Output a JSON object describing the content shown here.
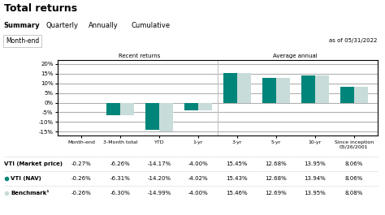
{
  "chart_data": {
    "type": "bar",
    "title": "Total returns",
    "annotations": [
      "Summary",
      "Quarterly",
      "Annually",
      "Cumulative",
      "Month-end",
      "as of 05/31/2022",
      "Recent returns",
      "Average annual"
    ],
    "categories": [
      "Month-end",
      "3-Month total",
      "YTD",
      "1-yr",
      "3-yr",
      "5-yr",
      "10-yr",
      "Since inception\n05/26/2001"
    ],
    "series": [
      {
        "name": "VTI (Market price)",
        "type": "table",
        "values": [
          -0.27,
          -6.26,
          -14.17,
          -4.0,
          15.45,
          12.68,
          13.95,
          8.06
        ],
        "value_labels": [
          "-0.27%",
          "-6.26%",
          "-14.17%",
          "-4.00%",
          "15.45%",
          "12.68%",
          "13.95%",
          "8.06%"
        ]
      },
      {
        "name": "VTI (NAV)",
        "type": "bar",
        "color": "#00857A",
        "values": [
          -0.26,
          -6.31,
          -14.2,
          -4.02,
          15.43,
          12.68,
          13.94,
          8.06
        ],
        "value_labels": [
          "-0.26%",
          "-6.31%",
          "-14.20%",
          "-4.02%",
          "15.43%",
          "12.68%",
          "13.94%",
          "8.06%"
        ]
      },
      {
        "name": "Benchmark¹",
        "type": "bar",
        "color": "#C8DDD9",
        "values": [
          -0.26,
          -6.3,
          -14.99,
          -4.0,
          15.46,
          12.69,
          13.95,
          8.08
        ],
        "value_labels": [
          "-0.26%",
          "-6.30%",
          "-14.99%",
          "-4.00%",
          "15.46%",
          "12.69%",
          "13.95%",
          "8.08%"
        ]
      }
    ],
    "ylim": [
      -17,
      22
    ],
    "yticks": [
      {
        "value": -15,
        "label": "-15%"
      },
      {
        "value": -10,
        "label": "-10%"
      },
      {
        "value": -5,
        "label": "-5%"
      },
      {
        "value": 0,
        "label": "0%"
      },
      {
        "value": 5,
        "label": "5%"
      },
      {
        "value": 10,
        "label": "10%"
      },
      {
        "value": 15,
        "label": "15%"
      },
      {
        "value": 20,
        "label": "20%"
      }
    ],
    "grid": true
  }
}
